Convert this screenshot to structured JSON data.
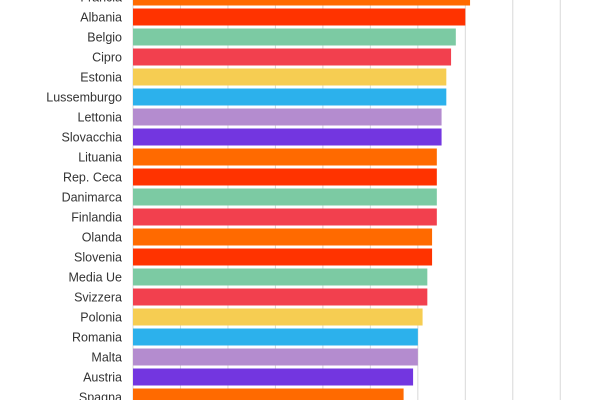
{
  "chart_data": {
    "type": "barh",
    "categories": [
      "Francia",
      "Albania",
      "Belgio",
      "Cipro",
      "Estonia",
      "Lussemburgo",
      "Lettonia",
      "Slovacchia",
      "Lituania",
      "Rep. Ceca",
      "Danimarca",
      "Finlandia",
      "Olanda",
      "Slovenia",
      "Media Ue",
      "Svizzera",
      "Polonia",
      "Romania",
      "Malta",
      "Austria",
      "Spagna"
    ],
    "values": [
      71,
      70,
      68,
      67,
      66,
      66,
      65,
      65,
      64,
      64,
      64,
      64,
      63,
      63,
      62,
      62,
      61,
      60,
      60,
      59,
      57
    ],
    "colors": [
      "#ff6a00",
      "#ff3300",
      "#7ccaa3",
      "#f2404e",
      "#f6cd52",
      "#2cb1ec",
      "#b48ccf",
      "#7336e0",
      "#ff6a00",
      "#ff3300",
      "#7ccaa3",
      "#f2404e",
      "#ff6a00",
      "#ff3300",
      "#7ccaa3",
      "#f2404e",
      "#f6cd52",
      "#2cb1ec",
      "#b48ccf",
      "#7336e0",
      "#ff6a00"
    ],
    "xlim": [
      0,
      91
    ],
    "xticks": [
      0,
      10,
      20,
      30,
      40,
      50,
      60,
      70,
      80,
      90
    ],
    "grid": true
  }
}
